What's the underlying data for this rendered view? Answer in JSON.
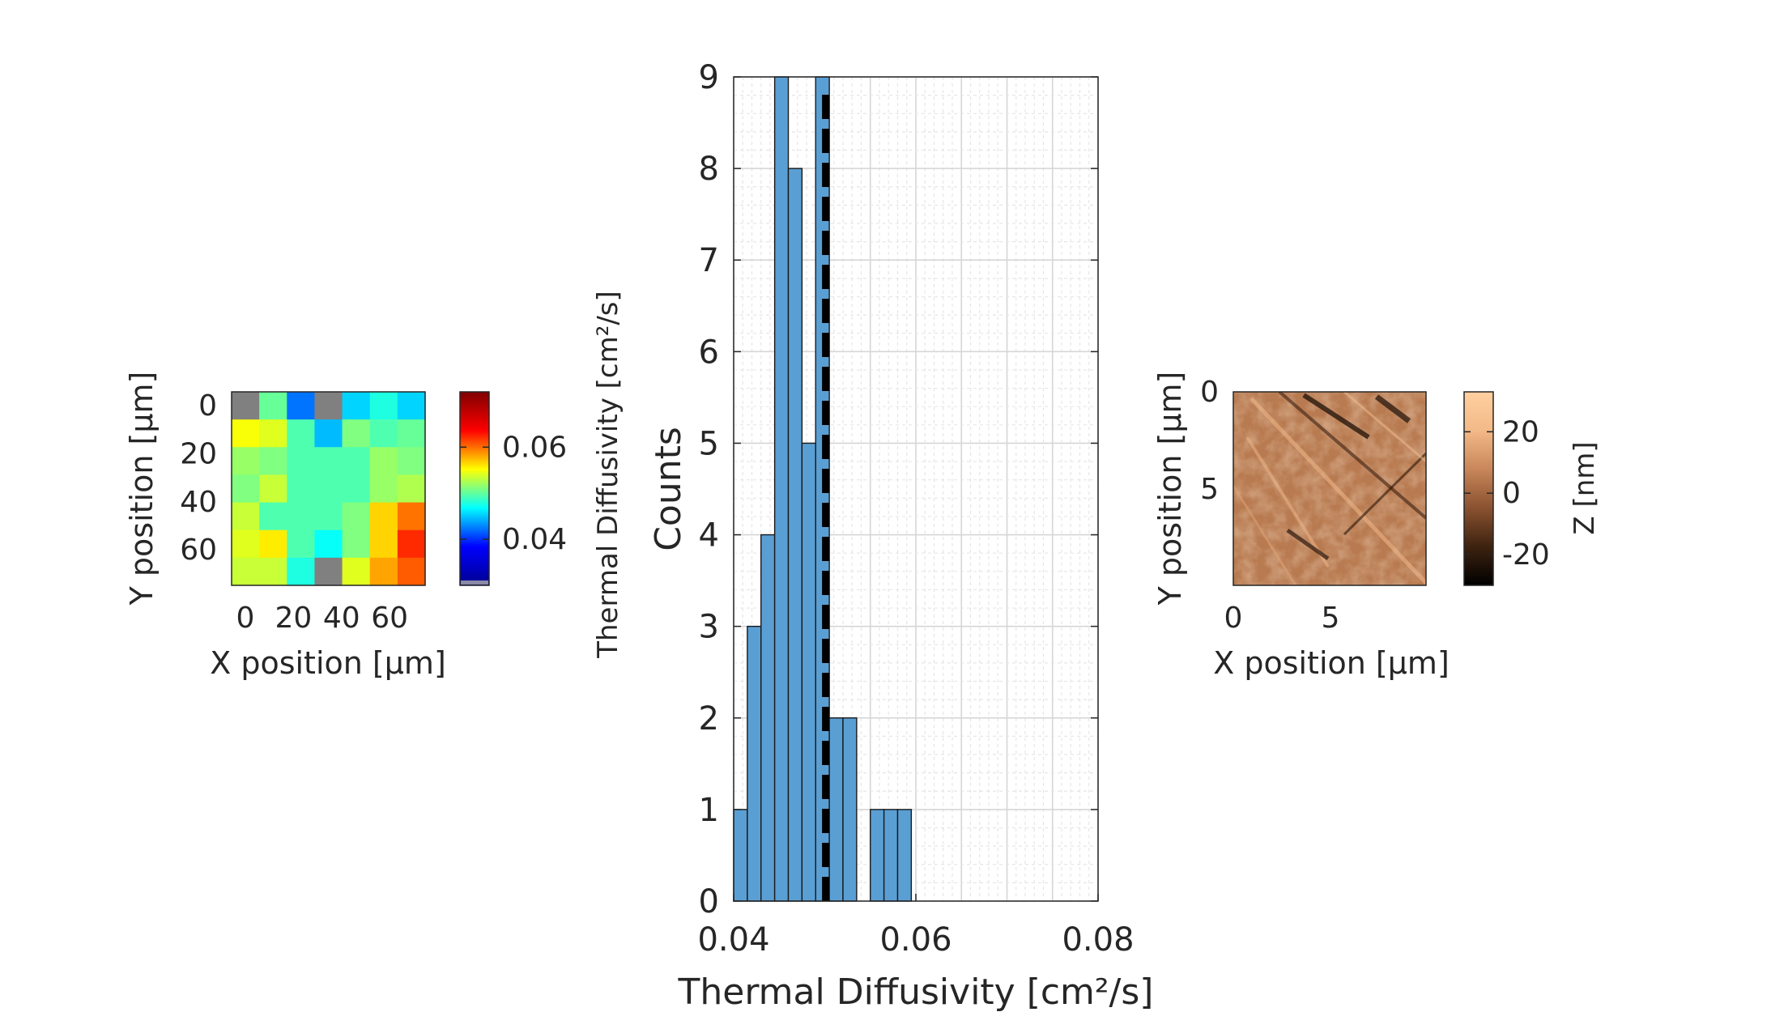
{
  "chart_data": [
    {
      "type": "heatmap",
      "panel": "left",
      "xlabel": "X position [μm]",
      "ylabel": "Y position [μm]",
      "x_ticks": [
        "0",
        "20",
        "40",
        "60"
      ],
      "y_ticks": [
        "0",
        "20",
        "40",
        "60"
      ],
      "colorbar": {
        "ticks": [
          "0.04",
          "0.06"
        ],
        "tick_values": [
          0.04,
          0.06
        ],
        "range": [
          0.03,
          0.072
        ],
        "colormap": "jet",
        "colors": [
          "#00008f",
          "#0000ff",
          "#00ffff",
          "#ffff00",
          "#ff0000",
          "#800000"
        ]
      },
      "nan_color": "#808080",
      "grid": [
        [
          null,
          0.05,
          0.04,
          null,
          0.044,
          0.047,
          0.044
        ],
        [
          0.056,
          0.055,
          0.049,
          0.043,
          0.051,
          0.049,
          0.05
        ],
        [
          0.052,
          0.051,
          0.049,
          0.049,
          0.049,
          0.052,
          0.051
        ],
        [
          0.051,
          0.054,
          0.049,
          0.049,
          0.049,
          0.052,
          0.053
        ],
        [
          0.054,
          0.049,
          0.049,
          0.049,
          0.051,
          0.058,
          0.062
        ],
        [
          0.055,
          0.057,
          0.049,
          0.046,
          0.051,
          0.058,
          0.065
        ],
        [
          0.054,
          0.054,
          0.047,
          null,
          0.055,
          0.06,
          0.063
        ]
      ]
    },
    {
      "type": "bar",
      "panel": "histogram",
      "xlabel": "Thermal Diffusivity [cm²/s]",
      "ylabel": "Counts",
      "outer_label": "Thermal Diffusivity [cm²/s]",
      "x_ticks": [
        "0.04",
        "0.06",
        "0.08"
      ],
      "y_ticks": [
        "0",
        "1",
        "2",
        "3",
        "4",
        "5",
        "6",
        "7",
        "8",
        "9"
      ],
      "xlim": [
        0.04,
        0.08
      ],
      "ylim": [
        0,
        9
      ],
      "bin_width": 0.0015,
      "bin_edges_start": 0.04,
      "counts": [
        1,
        3,
        4,
        9,
        8,
        5,
        9,
        2,
        2,
        0,
        1,
        1,
        1
      ],
      "mean_line": 0.0501,
      "bar_color": "#5a9fd4",
      "grid": true
    },
    {
      "type": "heatmap",
      "panel": "right",
      "xlabel": "X position [μm]",
      "ylabel": "Y position [μm]",
      "x_ticks": [
        "0",
        "5"
      ],
      "y_ticks": [
        "0",
        "5"
      ],
      "colorbar": {
        "label": "Z [nm]",
        "ticks": [
          "20",
          "0",
          "-20"
        ],
        "tick_values": [
          20,
          0,
          -20
        ],
        "range": [
          -30,
          33
        ],
        "colors": [
          "#000000",
          "#3d2210",
          "#8a5230",
          "#c8865a",
          "#f3b987",
          "#ffd0a0"
        ]
      },
      "surface_color": "#b87a50"
    }
  ]
}
